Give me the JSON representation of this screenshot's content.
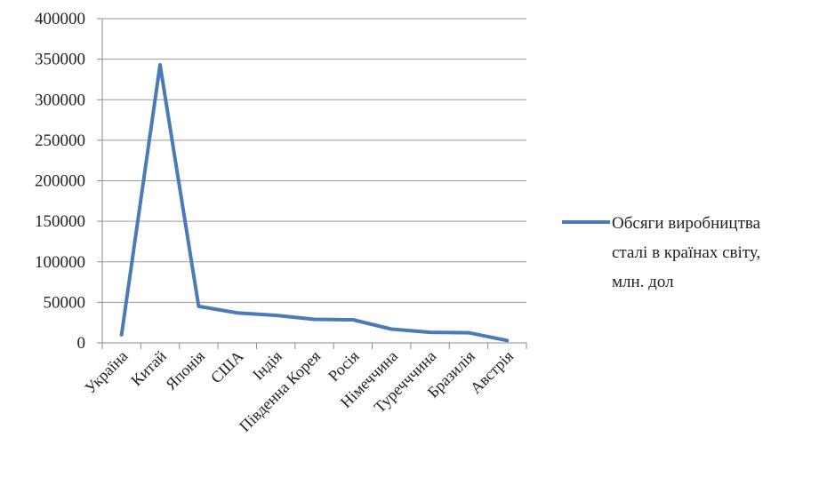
{
  "chart_data": {
    "type": "line",
    "categories": [
      "Україна",
      "Китай",
      "Японія",
      "США",
      "Індія",
      "Південна Корея",
      "Росія",
      "Німеччина",
      "Туречччина",
      "Бразилія",
      "Австрія"
    ],
    "series": [
      {
        "name": "Обсяги виробництва сталі в країнах світу, млн. дол",
        "values": [
          10000,
          343000,
          45000,
          37000,
          34000,
          29000,
          28500,
          17000,
          13000,
          12500,
          3000
        ]
      }
    ],
    "ylim": [
      0,
      400000
    ],
    "yticks": [
      0,
      50000,
      100000,
      150000,
      200000,
      250000,
      300000,
      350000,
      400000
    ],
    "grid": true,
    "legend_position": "right",
    "legend_lines": [
      "Обсяги виробництва",
      "сталі в країнах світу,",
      "млн. дол"
    ],
    "line_color": "#4a7ab8"
  }
}
